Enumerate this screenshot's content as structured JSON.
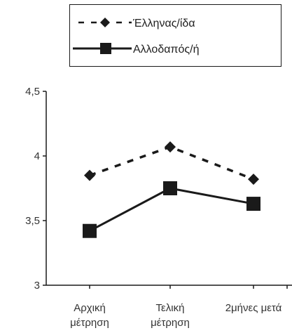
{
  "chart_data": {
    "type": "line",
    "categories": [
      [
        "Αρχική",
        "μέτρηση"
      ],
      [
        "Τελική",
        "μέτρηση"
      ],
      [
        "2μήνες μετά"
      ]
    ],
    "ylim": [
      3,
      4.5
    ],
    "yticks": [
      {
        "value": 4.5,
        "label": "4,5"
      },
      {
        "value": 4,
        "label": "4"
      },
      {
        "value": 3.5,
        "label": "3,5"
      },
      {
        "value": 3,
        "label": "3"
      }
    ],
    "grid": false,
    "legend_position": "top",
    "series": [
      {
        "name": "Έλληνας/ίδα",
        "values": [
          3.85,
          4.07,
          3.82
        ],
        "marker": "diamond",
        "line": "dashed",
        "color": "#1a1a1a"
      },
      {
        "name": "Αλλοδαπός/ή",
        "values": [
          3.42,
          3.75,
          3.63
        ],
        "marker": "square",
        "line": "solid",
        "color": "#1a1a1a"
      }
    ]
  }
}
